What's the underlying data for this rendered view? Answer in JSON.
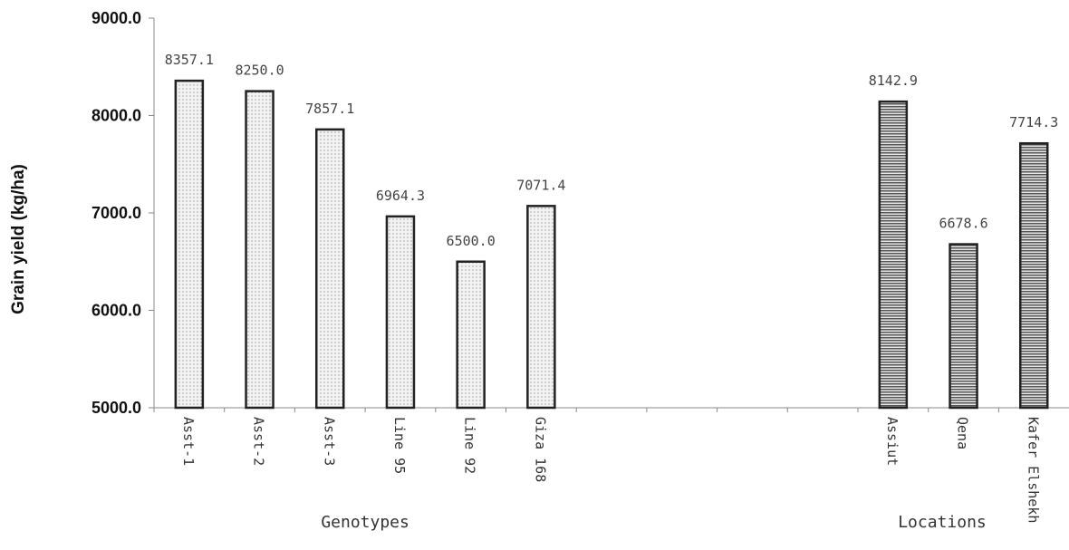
{
  "chart_data": {
    "type": "bar",
    "ylabel": "Grain yield (kg/ha)",
    "xlabel": "",
    "ylim": [
      5000,
      9000
    ],
    "yticks": [
      "5000.0",
      "6000.0",
      "7000.0",
      "8000.0",
      "9000.0"
    ],
    "grid": false,
    "groups": [
      {
        "name": "Genotypes",
        "categories": [
          "Asst-1",
          "Asst-2",
          "Asst-3",
          "Line 95",
          "Line 92",
          "Giza 168"
        ],
        "values": [
          8357.1,
          8250.0,
          7857.1,
          6964.3,
          6500.0,
          7071.4
        ],
        "labels": [
          "8357.1",
          "8250.0",
          "7857.1",
          "6964.3",
          "6500.0",
          "7071.4"
        ],
        "color": "#f2f2f2"
      },
      {
        "name": "Locations",
        "categories": [
          "Assiut",
          "Qena",
          "Kafer Elshekh"
        ],
        "values": [
          8142.9,
          6678.6,
          7714.3
        ],
        "labels": [
          "8142.9",
          "6678.6",
          "7714.3"
        ],
        "color": "#a8a8a8"
      }
    ]
  }
}
